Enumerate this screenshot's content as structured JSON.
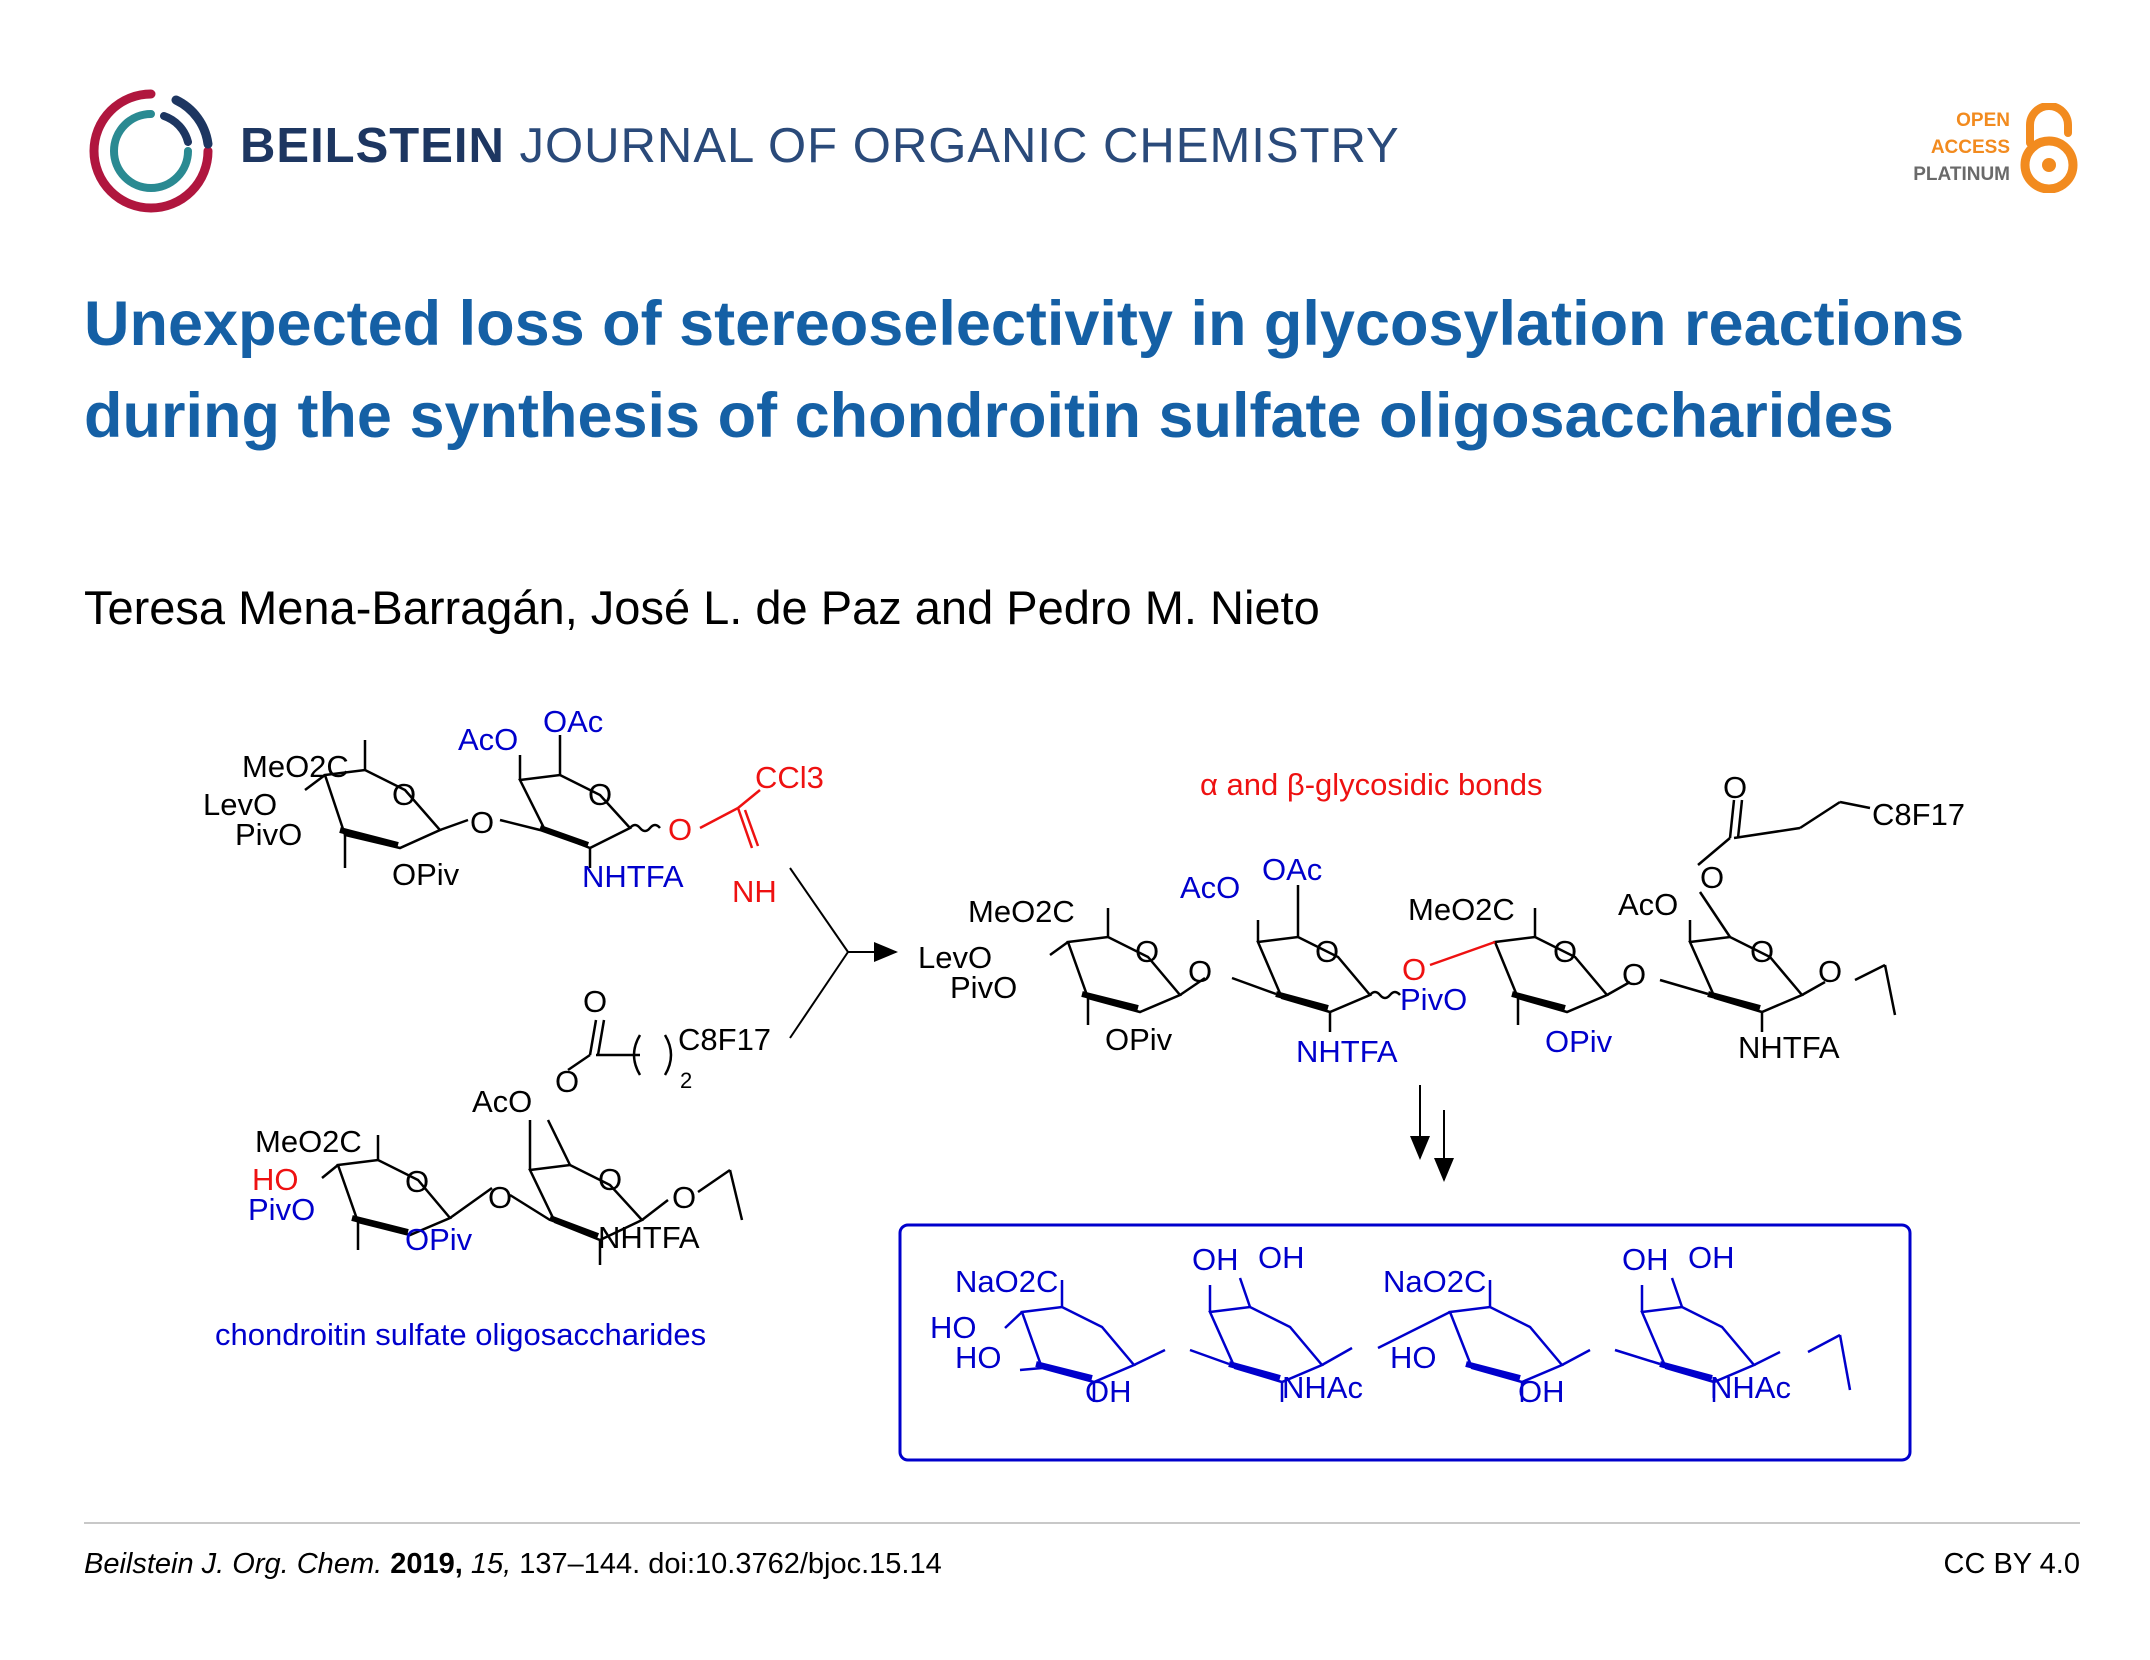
{
  "header": {
    "journal_bold": "BEILSTEIN",
    "journal_rest": "JOURNAL OF ORGANIC CHEMISTRY",
    "badge": {
      "line1": "OPEN",
      "line2": "ACCESS",
      "line3": "PLATINUM"
    },
    "colors": {
      "navy": "#1d3661",
      "orange": "#f28b1f",
      "teal": "#2a8a92",
      "crimson": "#b0163e"
    }
  },
  "article": {
    "title": "Unexpected loss of stereoselectivity in glycosylation reactions during the synthesis of chondroitin sulfate oligosaccharides",
    "authors": "Teresa Mena-Barragán, José L. de Paz and Pedro M. Nieto"
  },
  "graphic": {
    "donor": {
      "labels": {
        "meo2c": "MeO2C",
        "levo": "LevO",
        "pivo": "PivO",
        "opiv": "OPiv",
        "ring_o": "O",
        "link_o": "O",
        "aco": "AcO",
        "oac": "OAc",
        "nhtfa": "NHTFA",
        "imid_o": "O",
        "ccl3": "CCl3",
        "nh": "NH"
      }
    },
    "acceptor": {
      "labels": {
        "meo2c": "MeO2C",
        "ho": "HO",
        "pivo": "PivO",
        "opiv": "OPiv",
        "aco": "AcO",
        "carbonyl_o": "O",
        "ester_o": "O",
        "c8f17": "C8F17",
        "sub2": "2",
        "nhtfa": "NHTFA",
        "link_o": "O",
        "end_o": "O"
      }
    },
    "product": {
      "note": "α and β-glycosidic bonds",
      "labels": {
        "meo2c": "MeO2C",
        "levo": "LevO",
        "pivo": "PivO",
        "opiv": "OPiv",
        "aco": "AcO",
        "oac": "OAc",
        "nhtfa": "NHTFA",
        "meo2c_2": "MeO2C",
        "pivo_2": "PivO",
        "opiv_2": "OPiv",
        "aco_2": "AcO",
        "carbonyl_o": "O",
        "ester_o": "O",
        "c8f17": "C8F17",
        "nhtfa_2": "NHTFA",
        "red_o": "O"
      }
    },
    "final": {
      "labels": {
        "nao2c": "NaO2C",
        "ho": "HO",
        "ho2": "HO",
        "oh": "OH",
        "oh_a": "OH",
        "oh_b": "OH",
        "nhac": "NHAc",
        "nao2c_2": "NaO2C",
        "ho_2": "HO",
        "oh_2": "OH",
        "oh_c": "OH",
        "oh_d": "OH",
        "nhac_2": "NHAc"
      }
    },
    "caption": "chondroitin sulfate oligosaccharides"
  },
  "footer": {
    "journal_abbrev": "Beilstein J. Org. Chem.",
    "year": "2019,",
    "volume": "15,",
    "pages_doi": "137–144. doi:10.3762/bjoc.15.14",
    "license": "CC BY 4.0"
  }
}
